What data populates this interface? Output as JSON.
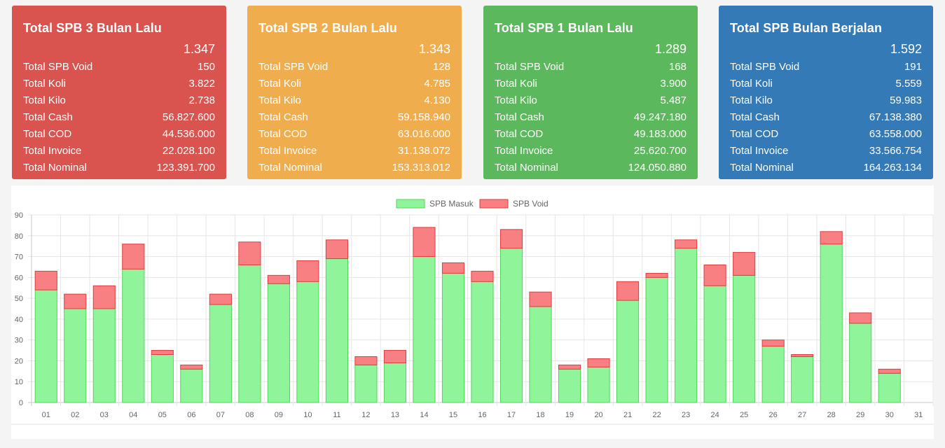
{
  "cards": [
    {
      "title": "Total SPB 3 Bulan Lalu",
      "total": "1.347",
      "color": "#d9534f",
      "rows": [
        {
          "label": "Total SPB Void",
          "value": "150"
        },
        {
          "label": "Total Koli",
          "value": "3.822"
        },
        {
          "label": "Total Kilo",
          "value": "2.738"
        },
        {
          "label": "Total Cash",
          "value": "56.827.600"
        },
        {
          "label": "Total COD",
          "value": "44.536.000"
        },
        {
          "label": "Total Invoice",
          "value": "22.028.100"
        },
        {
          "label": "Total Nominal",
          "value": "123.391.700"
        }
      ]
    },
    {
      "title": "Total SPB 2 Bulan Lalu",
      "total": "1.343",
      "color": "#f0ad4e",
      "rows": [
        {
          "label": "Total SPB Void",
          "value": "128"
        },
        {
          "label": "Total Koli",
          "value": "4.785"
        },
        {
          "label": "Total Kilo",
          "value": "4.130"
        },
        {
          "label": "Total Cash",
          "value": "59.158.940"
        },
        {
          "label": "Total COD",
          "value": "63.016.000"
        },
        {
          "label": "Total Invoice",
          "value": "31.138.072"
        },
        {
          "label": "Total Nominal",
          "value": "153.313.012"
        }
      ]
    },
    {
      "title": "Total SPB 1 Bulan Lalu",
      "total": "1.289",
      "color": "#5cb85c",
      "rows": [
        {
          "label": "Total SPB Void",
          "value": "168"
        },
        {
          "label": "Total Koli",
          "value": "3.900"
        },
        {
          "label": "Total Kilo",
          "value": "5.487"
        },
        {
          "label": "Total Cash",
          "value": "49.247.180"
        },
        {
          "label": "Total COD",
          "value": "49.183.000"
        },
        {
          "label": "Total Invoice",
          "value": "25.620.700"
        },
        {
          "label": "Total Nominal",
          "value": "124.050.880"
        }
      ]
    },
    {
      "title": "Total SPB Bulan Berjalan",
      "total": "1.592",
      "color": "#337ab7",
      "rows": [
        {
          "label": "Total SPB Void",
          "value": "191"
        },
        {
          "label": "Total Koli",
          "value": "5.559"
        },
        {
          "label": "Total Kilo",
          "value": "59.983"
        },
        {
          "label": "Total Cash",
          "value": "67.138.380"
        },
        {
          "label": "Total COD",
          "value": "63.558.000"
        },
        {
          "label": "Total Invoice",
          "value": "33.566.754"
        },
        {
          "label": "Total Nominal",
          "value": "164.263.134"
        }
      ]
    }
  ],
  "chart_data": {
    "type": "bar",
    "stacked": true,
    "categories": [
      "01",
      "02",
      "03",
      "04",
      "05",
      "06",
      "07",
      "08",
      "09",
      "10",
      "11",
      "12",
      "13",
      "14",
      "15",
      "16",
      "17",
      "18",
      "19",
      "20",
      "21",
      "22",
      "23",
      "24",
      "25",
      "26",
      "27",
      "28",
      "29",
      "30",
      "31"
    ],
    "series": [
      {
        "name": "SPB Masuk",
        "color": "#90f59a",
        "border": "#4fd55a",
        "values": [
          54,
          45,
          45,
          64,
          23,
          16,
          47,
          66,
          57,
          58,
          69,
          18,
          19,
          70,
          62,
          58,
          74,
          46,
          16,
          17,
          49,
          60,
          74,
          56,
          61,
          27,
          22,
          76,
          38,
          14,
          0
        ]
      },
      {
        "name": "SPB Void",
        "color": "#f98082",
        "border": "#e03a3e",
        "values": [
          9,
          7,
          11,
          12,
          2,
          2,
          5,
          11,
          4,
          10,
          9,
          4,
          6,
          14,
          5,
          5,
          9,
          7,
          2,
          4,
          9,
          2,
          4,
          10,
          11,
          3,
          1,
          6,
          5,
          2,
          0
        ]
      }
    ],
    "ylim": [
      0,
      90
    ],
    "yticks": [
      0,
      10,
      20,
      30,
      40,
      50,
      60,
      70,
      80,
      90
    ],
    "grid": true,
    "legend": "top-center"
  }
}
